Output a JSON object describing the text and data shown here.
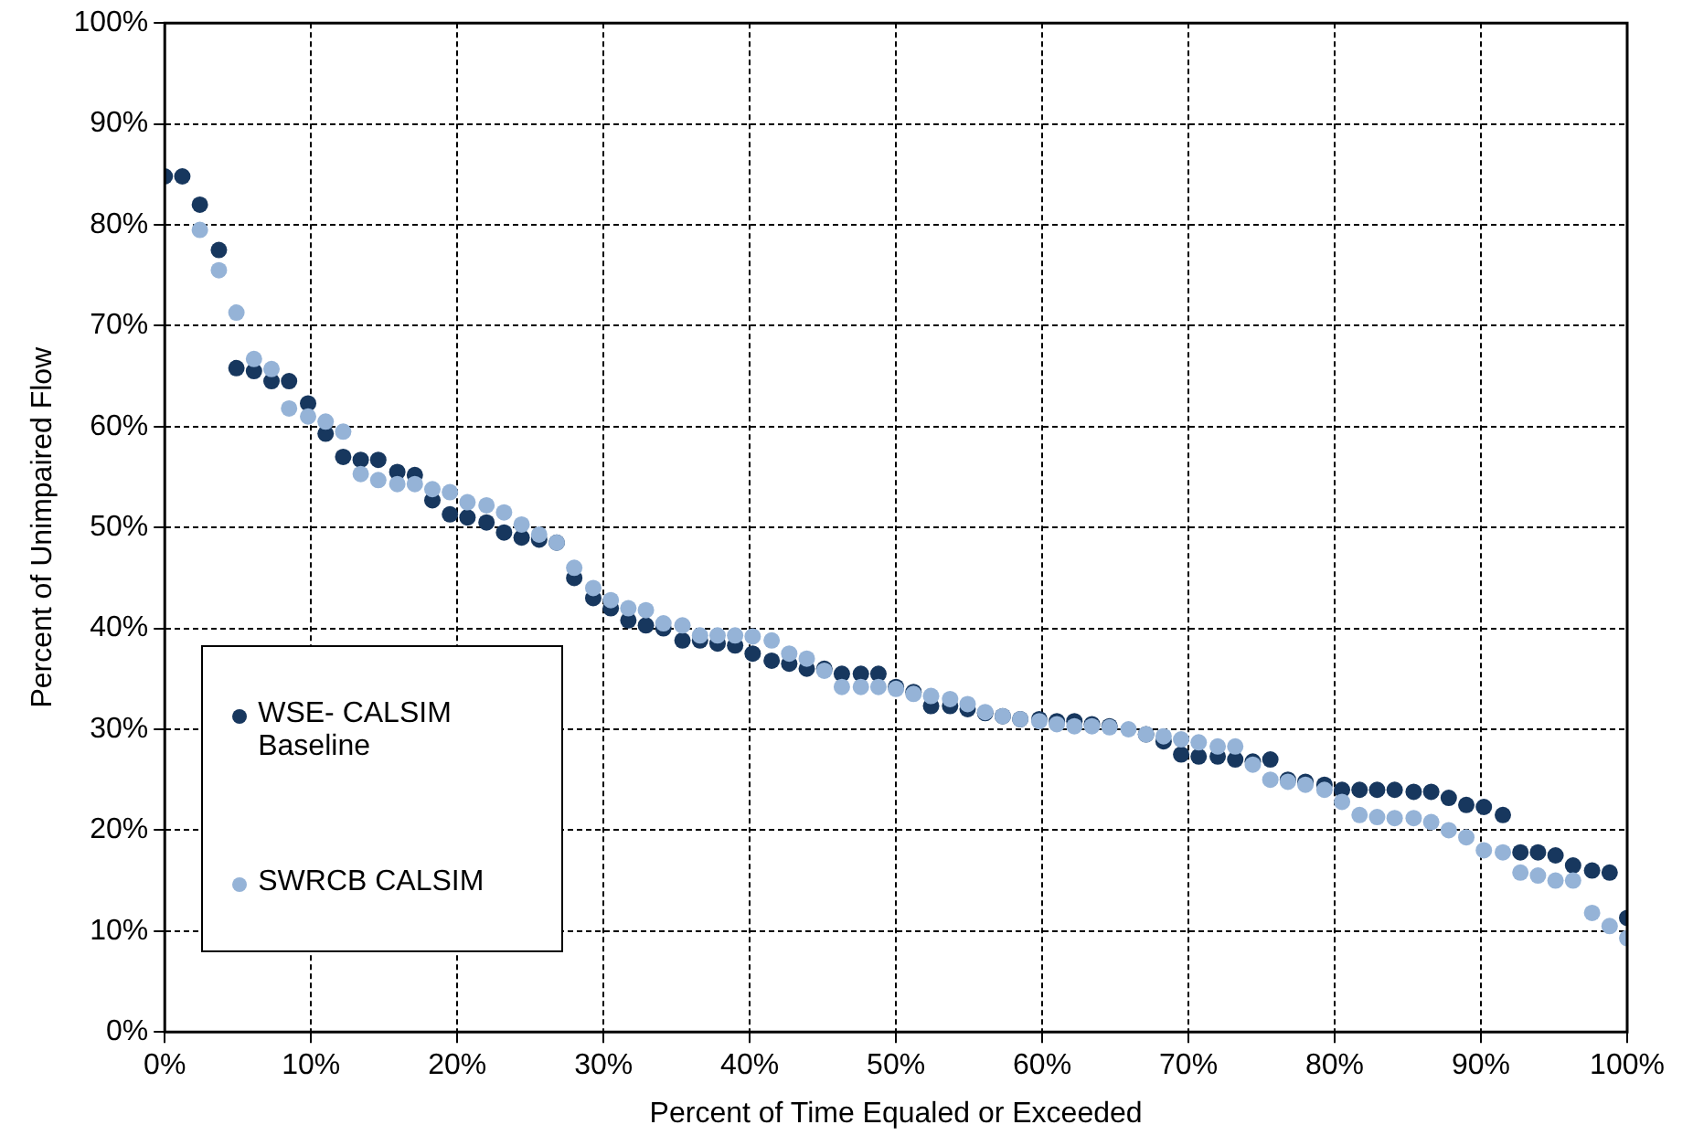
{
  "chart_data": {
    "type": "scatter",
    "xlabel": "Percent of Time Equaled or Exceeded",
    "ylabel": "Percent of Unimpaired Flow",
    "legend": "bottom left",
    "grid": true,
    "marker": "circle",
    "x": [
      0,
      1.2,
      2.4,
      3.7,
      4.9,
      6.1,
      7.3,
      8.5,
      9.8,
      11,
      12.2,
      13.4,
      14.6,
      15.9,
      17.1,
      18.3,
      19.5,
      20.7,
      22,
      23.2,
      24.4,
      25.6,
      26.8,
      28,
      29.3,
      30.5,
      31.7,
      32.9,
      34.1,
      35.4,
      36.6,
      37.8,
      39,
      40.2,
      41.5,
      42.7,
      43.9,
      45.1,
      46.3,
      47.6,
      48.8,
      50,
      51.2,
      52.4,
      53.7,
      54.9,
      56.1,
      57.3,
      58.5,
      59.8,
      61,
      62.2,
      63.4,
      64.6,
      65.9,
      67.1,
      68.3,
      69.5,
      70.7,
      72,
      73.2,
      74.4,
      75.6,
      76.8,
      78,
      79.3,
      80.5,
      81.7,
      82.9,
      84.1,
      85.4,
      86.6,
      87.8,
      89,
      90.2,
      91.5,
      92.7,
      93.9,
      95.1,
      96.3,
      97.6,
      98.8,
      100
    ],
    "xlim": [
      0,
      100
    ],
    "ylim": [
      0,
      100
    ],
    "xticks": [
      {
        "value": 0,
        "label": "0%"
      },
      {
        "value": 10,
        "label": "10%"
      },
      {
        "value": 20,
        "label": "20%"
      },
      {
        "value": 30,
        "label": "30%"
      },
      {
        "value": 40,
        "label": "40%"
      },
      {
        "value": 50,
        "label": "50%"
      },
      {
        "value": 60,
        "label": "60%"
      },
      {
        "value": 70,
        "label": "70%"
      },
      {
        "value": 80,
        "label": "80%"
      },
      {
        "value": 90,
        "label": "90%"
      },
      {
        "value": 100,
        "label": "100%"
      }
    ],
    "yticks": [
      {
        "value": 0,
        "label": "0%"
      },
      {
        "value": 10,
        "label": "10%"
      },
      {
        "value": 20,
        "label": "20%"
      },
      {
        "value": 30,
        "label": "30%"
      },
      {
        "value": 40,
        "label": "40%"
      },
      {
        "value": 50,
        "label": "50%"
      },
      {
        "value": 60,
        "label": "60%"
      },
      {
        "value": 70,
        "label": "70%"
      },
      {
        "value": 80,
        "label": "80%"
      },
      {
        "value": 90,
        "label": "90%"
      },
      {
        "value": 100,
        "label": "100%"
      }
    ],
    "series": [
      {
        "name": "WSE- CALSIM Baseline",
        "color": "#17375e",
        "values": [
          84.8,
          84.8,
          82,
          77.5,
          65.8,
          65.5,
          64.5,
          64.5,
          62.3,
          59.3,
          57,
          56.7,
          56.7,
          55.5,
          55.2,
          52.7,
          51.3,
          51,
          50.5,
          49.5,
          49,
          48.8,
          48.5,
          45,
          43,
          42,
          40.8,
          40.3,
          40,
          38.8,
          38.8,
          38.5,
          38.3,
          37.5,
          36.8,
          36.5,
          36,
          36,
          35.5,
          35.5,
          35.5,
          34.2,
          33.7,
          32.3,
          32.3,
          32,
          31.6,
          31.3,
          31,
          31,
          30.8,
          30.8,
          30.5,
          30.3,
          null,
          29.5,
          28.8,
          27.5,
          27.3,
          27.3,
          27,
          26.8,
          27,
          25,
          24.8,
          24.5,
          24,
          24,
          24,
          24,
          23.8,
          23.8,
          23.2,
          22.5,
          22.3,
          21.5,
          17.8,
          17.8,
          17.5,
          16.5,
          16,
          15.8,
          11.3
        ]
      },
      {
        "name": "SWRCB CALSIM",
        "color": "#95b3d7",
        "values": [
          null,
          null,
          79.5,
          75.5,
          71.3,
          66.7,
          65.7,
          61.8,
          61,
          60.5,
          59.5,
          55.3,
          54.7,
          54.3,
          54.3,
          53.8,
          53.5,
          52.5,
          52.2,
          51.5,
          50.3,
          49.3,
          48.5,
          46,
          44,
          42.8,
          42,
          41.8,
          40.5,
          40.3,
          39.3,
          39.3,
          39.3,
          39.2,
          38.8,
          37.5,
          37,
          35.8,
          34.2,
          34.2,
          34.2,
          34,
          33.5,
          33.3,
          33,
          32.5,
          31.7,
          31.3,
          31,
          30.8,
          30.5,
          30.3,
          30.3,
          30.2,
          30,
          29.5,
          29.3,
          29,
          28.7,
          28.3,
          28.3,
          26.5,
          25,
          24.8,
          24.5,
          24,
          22.8,
          21.5,
          21.3,
          21.2,
          21.2,
          20.8,
          20,
          19.3,
          18,
          17.8,
          15.8,
          15.5,
          15,
          15,
          11.8,
          10.5,
          9.3
        ]
      }
    ]
  }
}
